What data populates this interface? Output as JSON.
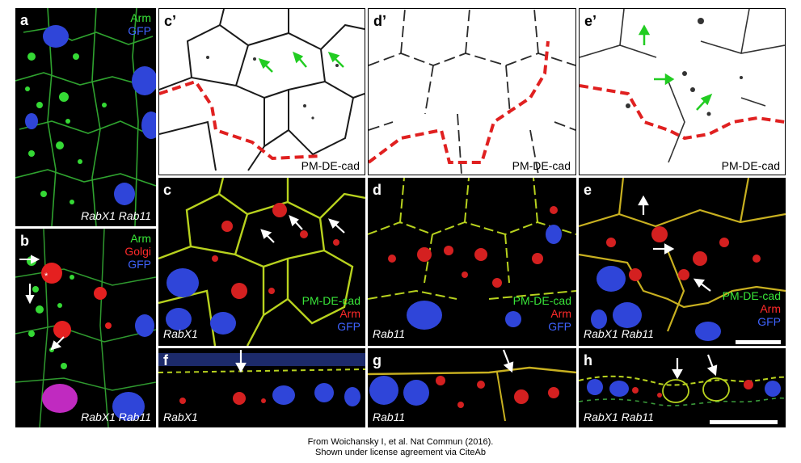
{
  "panels": {
    "a": {
      "letter": "a",
      "genotype": "RabX1 Rab11",
      "channels": [
        "Arm",
        "GFP"
      ]
    },
    "b": {
      "letter": "b",
      "genotype": "RabX1 Rab11",
      "channels": [
        "Arm",
        "Golgi",
        "GFP"
      ]
    },
    "c_prime": {
      "letter": "c’",
      "stain": "PM-DE-cad"
    },
    "d_prime": {
      "letter": "d’",
      "stain": "PM-DE-cad"
    },
    "e_prime": {
      "letter": "e’",
      "stain": "PM-DE-cad"
    },
    "c": {
      "letter": "c",
      "genotype": "RabX1",
      "channels": [
        "PM-DE-cad",
        "Arm",
        "GFP"
      ]
    },
    "d": {
      "letter": "d",
      "genotype": "Rab11",
      "channels": [
        "PM-DE-cad",
        "Arm",
        "GFP"
      ]
    },
    "e": {
      "letter": "e",
      "genotype": "RabX1 Rab11",
      "channels": [
        "PM-DE-cad",
        "Arm",
        "GFP"
      ]
    },
    "f": {
      "letter": "f",
      "genotype": "RabX1"
    },
    "g": {
      "letter": "g",
      "genotype": "Rab11"
    },
    "h": {
      "letter": "h",
      "genotype": "RabX1 Rab11"
    }
  },
  "colors": {
    "green": "#39e639",
    "red": "#ff2a2a",
    "blue": "#3f63ff",
    "white": "#ffffff",
    "black": "#000000",
    "dashed_border": "#e02020"
  },
  "credit": {
    "line1": "From Woichansky I, et al. Nat Commun (2016).",
    "line2": "Shown under license agreement via CiteAb"
  }
}
